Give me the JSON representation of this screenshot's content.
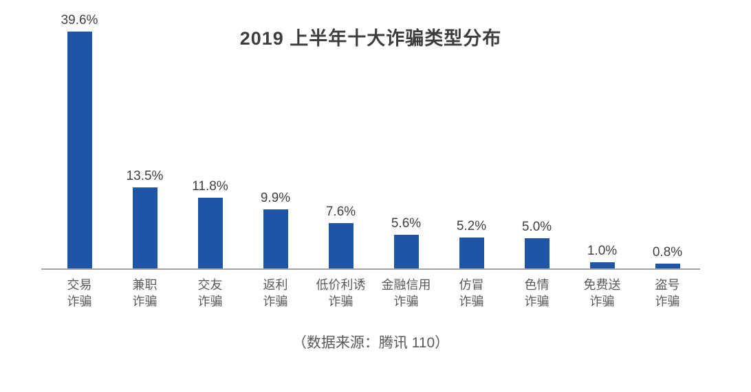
{
  "chart_data": {
    "type": "bar",
    "title": "2019 上半年十大诈骗类型分布",
    "categories": [
      "交易诈骗",
      "兼职诈骗",
      "交友诈骗",
      "返利诈骗",
      "低价利诱诈骗",
      "金融信用诈骗",
      "仿冒诈骗",
      "色情诈骗",
      "免费送诈骗",
      "盗号诈骗"
    ],
    "category_label_lines": [
      [
        "交易",
        "诈骗"
      ],
      [
        "兼职",
        "诈骗"
      ],
      [
        "交友",
        "诈骗"
      ],
      [
        "返利",
        "诈骗"
      ],
      [
        "低价利诱",
        "诈骗"
      ],
      [
        "金融信用",
        "诈骗"
      ],
      [
        "仿冒",
        "诈骗"
      ],
      [
        "色情",
        "诈骗"
      ],
      [
        "免费送",
        "诈骗"
      ],
      [
        "盗号",
        "诈骗"
      ]
    ],
    "values": [
      39.6,
      13.5,
      11.8,
      9.9,
      7.6,
      5.6,
      5.2,
      5.0,
      1.0,
      0.8
    ],
    "value_labels": [
      "39.6%",
      "13.5%",
      "11.8%",
      "9.9%",
      "7.6%",
      "5.6%",
      "5.2%",
      "5.0%",
      "1.0%",
      "0.8%"
    ],
    "xlabel": "",
    "ylabel": "",
    "ylim": [
      0,
      42
    ],
    "grid": false,
    "legend": false,
    "bar_color": "#1e56a5",
    "axis_line_color": "#a6a6a6"
  },
  "footer": {
    "source_note": "（数据来源：腾讯 110）"
  }
}
